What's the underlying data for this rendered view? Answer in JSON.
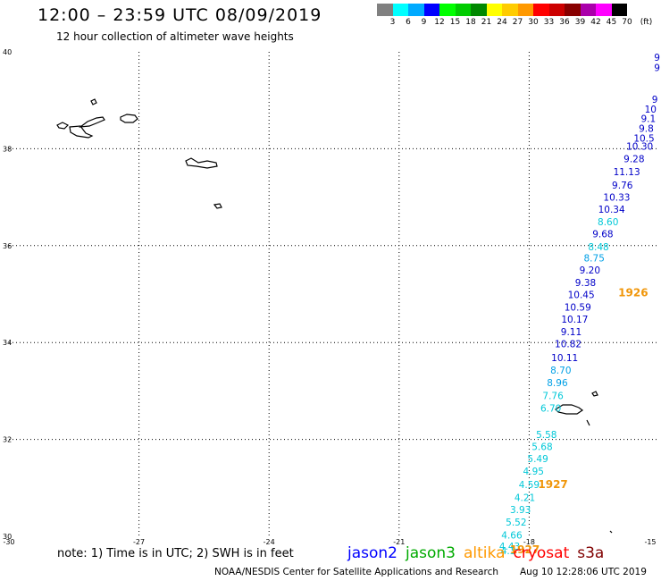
{
  "title": "12:00 – 23:59 UTC 08/09/2019",
  "subtitle": "12 hour collection of altimeter wave heights",
  "legend": {
    "unit": "(ft)",
    "colors": [
      "#808080",
      "#00ffff",
      "#00aaff",
      "#0000ff",
      "#00ff00",
      "#00cc00",
      "#008800",
      "#ffff00",
      "#ffcc00",
      "#ff9900",
      "#ff0000",
      "#cc0000",
      "#880000",
      "#aa00aa",
      "#ff00ff",
      "#000000"
    ],
    "labels": [
      "3",
      "6",
      "9",
      "12",
      "15",
      "18",
      "21",
      "24",
      "27",
      "30",
      "33",
      "36",
      "39",
      "42",
      "45",
      "70"
    ]
  },
  "map": {
    "lat_ticks": [
      "40",
      "38",
      "36",
      "34",
      "32",
      "30"
    ],
    "lon_ticks": [
      "-30",
      "-27",
      "-24",
      "-21",
      "-18",
      "-15"
    ],
    "points": [
      {
        "lat": 39.82,
        "lon": -15.05,
        "v": "9",
        "c": "#0000c8"
      },
      {
        "lat": 39.6,
        "lon": -15.05,
        "v": "9",
        "c": "#0000c8"
      },
      {
        "lat": 38.95,
        "lon": -15.1,
        "v": "9",
        "c": "#0000c8"
      },
      {
        "lat": 38.75,
        "lon": -15.2,
        "v": "10",
        "c": "#0000c8"
      },
      {
        "lat": 38.55,
        "lon": -15.25,
        "v": "9.1",
        "c": "#0000c8"
      },
      {
        "lat": 38.35,
        "lon": -15.3,
        "v": "9.8",
        "c": "#0000c8"
      },
      {
        "lat": 38.15,
        "lon": -15.35,
        "v": "10.5",
        "c": "#0000c8"
      },
      {
        "lat": 37.98,
        "lon": -15.45,
        "v": "10.30",
        "c": "#0000c8"
      },
      {
        "lat": 37.72,
        "lon": -15.58,
        "v": "9.28",
        "c": "#0000c8"
      },
      {
        "lat": 37.45,
        "lon": -15.75,
        "v": "11.13",
        "c": "#0000c8"
      },
      {
        "lat": 37.18,
        "lon": -15.85,
        "v": "9.76",
        "c": "#0000c8"
      },
      {
        "lat": 36.93,
        "lon": -15.98,
        "v": "10.33",
        "c": "#0000c8"
      },
      {
        "lat": 36.68,
        "lon": -16.1,
        "v": "10.34",
        "c": "#0000c8"
      },
      {
        "lat": 36.42,
        "lon": -16.18,
        "v": "8.60",
        "c": "#00c8d8"
      },
      {
        "lat": 36.17,
        "lon": -16.3,
        "v": "9.68",
        "c": "#0000c8"
      },
      {
        "lat": 35.9,
        "lon": -16.4,
        "v": "8.48",
        "c": "#00c8d8"
      },
      {
        "lat": 35.67,
        "lon": -16.5,
        "v": "8.75",
        "c": "#00a0e6"
      },
      {
        "lat": 35.42,
        "lon": -16.6,
        "v": "9.20",
        "c": "#0000c8"
      },
      {
        "lat": 35.17,
        "lon": -16.7,
        "v": "9.38",
        "c": "#0000c8"
      },
      {
        "lat": 34.92,
        "lon": -16.8,
        "v": "10.45",
        "c": "#0000c8"
      },
      {
        "lat": 34.66,
        "lon": -16.88,
        "v": "10.59",
        "c": "#0000c8"
      },
      {
        "lat": 34.41,
        "lon": -16.95,
        "v": "10.17",
        "c": "#0000c8"
      },
      {
        "lat": 34.15,
        "lon": -17.03,
        "v": "9.11",
        "c": "#0000c8"
      },
      {
        "lat": 33.9,
        "lon": -17.1,
        "v": "10.82",
        "c": "#0000c8"
      },
      {
        "lat": 33.62,
        "lon": -17.18,
        "v": "10.11",
        "c": "#0000c8"
      },
      {
        "lat": 33.36,
        "lon": -17.27,
        "v": "8.70",
        "c": "#00a0e6"
      },
      {
        "lat": 33.1,
        "lon": -17.35,
        "v": "8.96",
        "c": "#00a0e6"
      },
      {
        "lat": 32.83,
        "lon": -17.45,
        "v": "7.76",
        "c": "#00c8d8"
      },
      {
        "lat": 32.57,
        "lon": -17.5,
        "v": "6.70",
        "c": "#00c8d8"
      },
      {
        "lat": 32.03,
        "lon": -17.6,
        "v": "5.58",
        "c": "#00c8d8"
      },
      {
        "lat": 31.78,
        "lon": -17.7,
        "v": "5.68",
        "c": "#00c8d8"
      },
      {
        "lat": 31.53,
        "lon": -17.8,
        "v": "5.49",
        "c": "#00c8d8"
      },
      {
        "lat": 31.27,
        "lon": -17.9,
        "v": "4.95",
        "c": "#00c8d8"
      },
      {
        "lat": 31.0,
        "lon": -18.0,
        "v": "4.59",
        "c": "#00c8d8"
      },
      {
        "lat": 30.73,
        "lon": -18.1,
        "v": "4.21",
        "c": "#00c8d8"
      },
      {
        "lat": 30.48,
        "lon": -18.2,
        "v": "3.93",
        "c": "#00c8d8"
      },
      {
        "lat": 30.22,
        "lon": -18.3,
        "v": "5.52",
        "c": "#00c8d8"
      },
      {
        "lat": 29.95,
        "lon": -18.4,
        "v": "4.66",
        "c": "#00c8d8"
      },
      {
        "lat": 29.72,
        "lon": -18.45,
        "v": "4.43",
        "c": "#00c8d8"
      },
      {
        "lat": 29.63,
        "lon": -18.48,
        "v": "4.3",
        "c": "#00c8d8"
      }
    ],
    "times": [
      {
        "lat": 34.95,
        "lon": -15.6,
        "v": "1926"
      },
      {
        "lat": 31.0,
        "lon": -17.45,
        "v": "1927"
      },
      {
        "lat": 29.65,
        "lon": -18.1,
        "v": "1927"
      }
    ]
  },
  "note": "note: 1) Time is in UTC; 2) SWH is in feet",
  "satellites": [
    {
      "name": "jason2",
      "color": "#0000ff"
    },
    {
      "name": "jason3",
      "color": "#00aa00"
    },
    {
      "name": "altika",
      "color": "#ff9900"
    },
    {
      "name": "cryosat",
      "color": "#ff0000"
    },
    {
      "name": "s3a",
      "color": "#800000"
    }
  ],
  "credit": "NOAA/NESDIS Center for Satellite Applications and Research",
  "timestamp": "Aug 10 12:28:06 UTC 2019",
  "colors": {
    "time_label": "#f0960a"
  }
}
